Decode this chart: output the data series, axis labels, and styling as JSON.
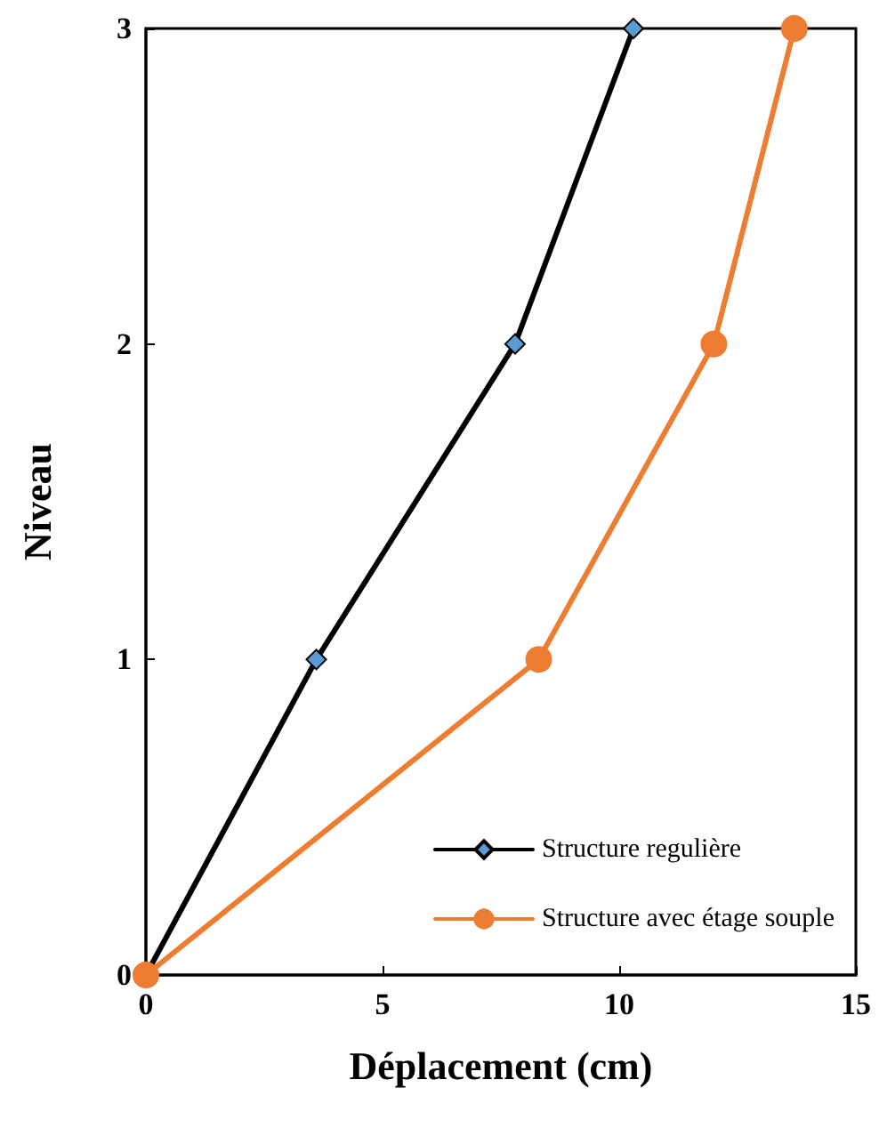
{
  "chart_data": {
    "type": "line",
    "xlabel": "Déplacement (cm)",
    "ylabel": "Niveau",
    "xlim": [
      0,
      15
    ],
    "xticks": [
      0,
      5,
      10,
      15
    ],
    "ylim": [
      0,
      3
    ],
    "yticks": [
      0,
      1,
      2,
      3
    ],
    "grid": false,
    "legend": "bottom right",
    "line_style": "solid",
    "series": [
      {
        "name": "Structure regulière",
        "color": "#000000",
        "marker": "diamond",
        "x": [
          0,
          3.6,
          7.8,
          10.3
        ],
        "values": [
          0,
          1,
          2,
          3
        ]
      },
      {
        "name": "Structure avec étage souple",
        "color": "#ed7d31",
        "marker": "circle",
        "x": [
          0,
          8.3,
          12.0,
          13.7
        ],
        "values": [
          0,
          1,
          2,
          3
        ]
      }
    ]
  }
}
